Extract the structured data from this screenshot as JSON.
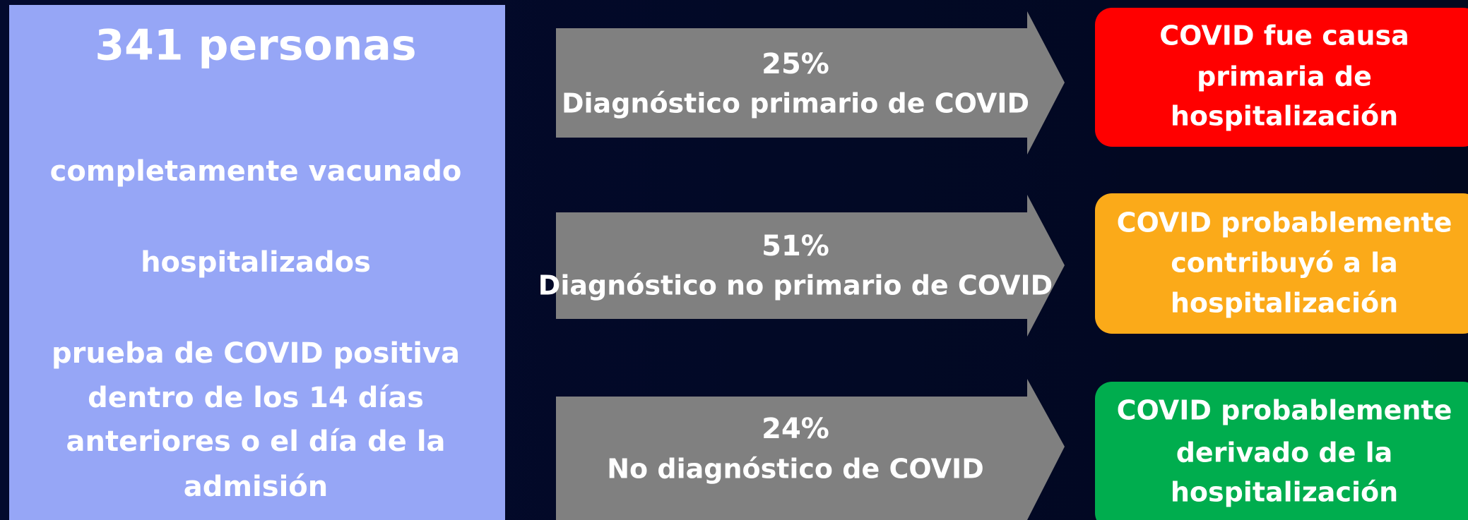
{
  "left": {
    "title": "341 personas",
    "items": [
      [
        "completamente vacunado"
      ],
      [
        "hospitalizados"
      ],
      [
        "prueba de COVID positiva",
        "dentro de los 14 días",
        "anteriores o el día de la",
        "admisión"
      ]
    ]
  },
  "arrows": [
    {
      "percent": "25%",
      "label": "Diagnóstico primario de COVID"
    },
    {
      "percent": "51%",
      "label": "Diagnóstico no primario de COVID"
    },
    {
      "percent": "24%",
      "label": "No diagnóstico de COVID"
    }
  ],
  "outcomes": [
    {
      "lines": [
        "COVID fue causa",
        "primaria de",
        "hospitalización"
      ]
    },
    {
      "lines": [
        "COVID probablemente",
        "contribuyó a la",
        "hospitalización"
      ]
    },
    {
      "lines": [
        "COVID probablemente",
        "derivado de la",
        "hospitalización"
      ]
    }
  ]
}
